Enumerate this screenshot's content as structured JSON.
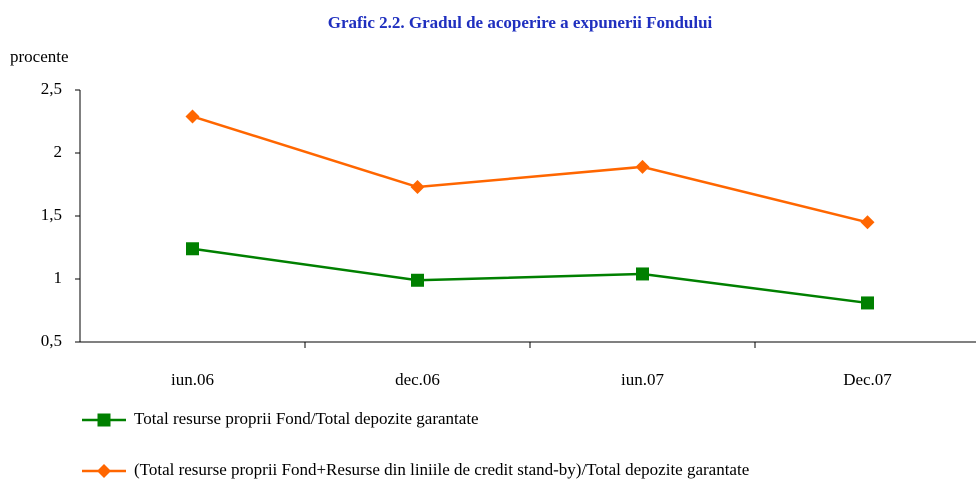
{
  "chart_data": {
    "type": "line",
    "title": "Grafic 2.2. Gradul de acoperire a expunerii Fondului",
    "y_label": "procente",
    "categories": [
      "iun.06",
      "dec.06",
      "iun.07",
      "Dec.07"
    ],
    "series": [
      {
        "name": "Total resurse proprii Fond/Total depozite garantate",
        "color": "#008000",
        "marker": "square",
        "values": [
          1.24,
          0.99,
          1.04,
          0.81
        ]
      },
      {
        "name": "(Total resurse proprii Fond+Resurse din liniile de credit stand-by)/Total depozite garantate",
        "color": "#ff6600",
        "marker": "diamond",
        "values": [
          2.29,
          1.73,
          1.89,
          1.45
        ]
      }
    ],
    "ylim": [
      0.5,
      2.5
    ],
    "yticks": [
      {
        "value": 0.5,
        "label": "0,5"
      },
      1,
      {
        "value": 1.5,
        "label": "1,5"
      },
      2,
      {
        "value": 2.5,
        "label": "2,5"
      }
    ],
    "grid": false,
    "legend": "bottom"
  }
}
